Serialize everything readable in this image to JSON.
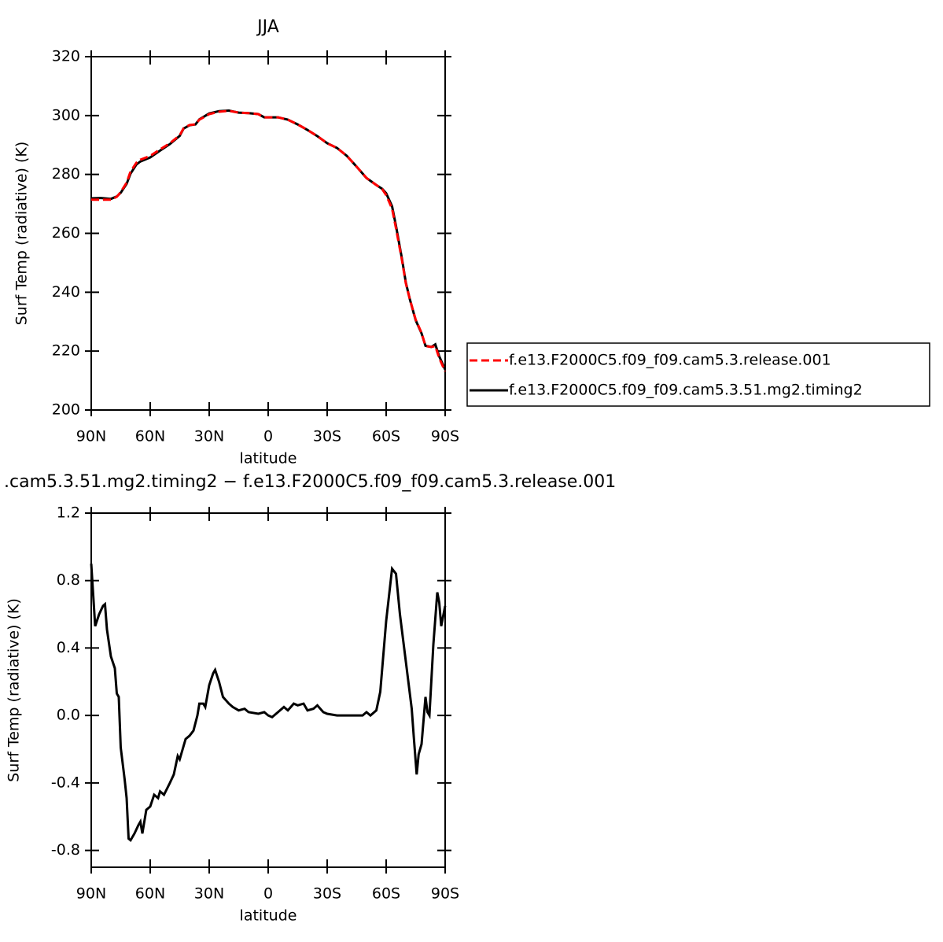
{
  "chart_data": [
    {
      "type": "line",
      "title": "JJA",
      "x_label": "latitude",
      "y_label": "Surf Temp (radiative) (K)",
      "x": [
        90,
        85,
        80,
        77,
        75,
        72,
        70,
        67,
        65,
        60,
        55,
        50,
        45,
        43,
        40,
        37,
        35,
        30,
        25,
        20,
        15,
        10,
        5,
        2,
        0,
        -5,
        -10,
        -15,
        -20,
        -25,
        -30,
        -35,
        -40,
        -45,
        -50,
        -55,
        -58,
        -60,
        -63,
        -65,
        -68,
        -70,
        -72,
        -75,
        -78,
        -80,
        -83,
        -85,
        -87,
        -90
      ],
      "series": [
        {
          "name": "f.e13.F2000C5.f09_f09.cam5.3.release.001",
          "color": "#ff0000",
          "linestyle": "dashed",
          "values": [
            271.4,
            271.4,
            271.4,
            272.4,
            274,
            277.2,
            281,
            284,
            285,
            286.3,
            288.5,
            290.6,
            293.3,
            295.7,
            296.8,
            297,
            298.6,
            300.5,
            301.3,
            301.6,
            301,
            300.8,
            300.5,
            299.4,
            299.4,
            299.4,
            298.6,
            297,
            295.1,
            293,
            290.6,
            289,
            286.3,
            282.6,
            278.8,
            276.4,
            275,
            273,
            268.4,
            261.7,
            251,
            243,
            237.7,
            230.7,
            226.2,
            221.7,
            221.4,
            221.7,
            217.6,
            213.1
          ]
        },
        {
          "name": "f.e13.F2000C5.f09_f09.cam5.3.51.mg2.timing2",
          "color": "#000000",
          "linestyle": "solid",
          "values": [
            271.9,
            272,
            271.7,
            272.5,
            273.8,
            276.8,
            280.3,
            283.4,
            284.4,
            285.8,
            288.1,
            290.3,
            293.1,
            295.6,
            296.7,
            297,
            298.7,
            300.7,
            301.5,
            301.7,
            301,
            300.8,
            300.5,
            299.4,
            299.4,
            299.4,
            298.6,
            297,
            295.1,
            293,
            290.6,
            289,
            286.3,
            282.6,
            278.8,
            276.4,
            275.1,
            273.6,
            269.2,
            262.5,
            251.5,
            243.3,
            237.7,
            230.5,
            226,
            221.8,
            221.4,
            222.3,
            218.2,
            213.7
          ]
        }
      ],
      "xlim": [
        90,
        -90
      ],
      "ylim": [
        200,
        320
      ],
      "xticks": [
        {
          "value": 90,
          "label": "90N"
        },
        {
          "value": 60,
          "label": "60N"
        },
        {
          "value": 30,
          "label": "30N"
        },
        0,
        {
          "value": -30,
          "label": "30S"
        },
        {
          "value": -60,
          "label": "60S"
        },
        {
          "value": -90,
          "label": "90S"
        }
      ],
      "yticks": [
        200,
        220,
        240,
        260,
        280,
        300,
        320
      ],
      "legend": "right"
    },
    {
      "type": "line",
      "title": ".cam5.3.51.mg2.timing2 − f.e13.F2000C5.f09_f09.cam5.3.release.001",
      "x_label": "latitude",
      "y_label": "Surf Temp (radiative) (K)",
      "x": [
        90,
        88,
        86,
        84,
        83,
        82,
        80,
        78,
        77,
        76,
        75,
        73,
        72,
        71,
        70,
        68,
        66,
        65,
        64,
        63,
        62,
        60,
        58,
        56,
        55,
        53,
        50,
        48,
        46,
        45,
        42,
        40,
        38,
        36,
        35,
        33,
        32,
        30,
        28,
        27,
        25,
        23,
        20,
        18,
        15,
        12,
        10,
        5,
        2,
        0,
        -2,
        -5,
        -8,
        -10,
        -13,
        -15,
        -18,
        -20,
        -23,
        -25,
        -28,
        -30,
        -35,
        -40,
        -45,
        -48,
        -50,
        -52,
        -55,
        -57,
        -60,
        -63,
        -65,
        -67,
        -70,
        -73,
        -74,
        -75.5,
        -76.5,
        -78,
        -80,
        -81,
        -82,
        -84,
        -86,
        -87,
        -88,
        -90
      ],
      "color": "#000000",
      "values": [
        0.9,
        0.53,
        0.6,
        0.65,
        0.66,
        0.51,
        0.35,
        0.28,
        0.13,
        0.11,
        -0.19,
        -0.38,
        -0.49,
        -0.73,
        -0.74,
        -0.7,
        -0.65,
        -0.63,
        -0.7,
        -0.63,
        -0.56,
        -0.54,
        -0.47,
        -0.49,
        -0.45,
        -0.47,
        -0.4,
        -0.35,
        -0.24,
        -0.26,
        -0.14,
        -0.12,
        -0.09,
        0,
        0.07,
        0.07,
        0.05,
        0.18,
        0.25,
        0.27,
        0.2,
        0.11,
        0.07,
        0.05,
        0.03,
        0.04,
        0.02,
        0.01,
        0.02,
        0,
        -0.01,
        0.02,
        0.05,
        0.03,
        0.07,
        0.06,
        0.07,
        0.03,
        0.04,
        0.06,
        0.02,
        0.01,
        0,
        0,
        0,
        0,
        0.02,
        0,
        0.03,
        0.14,
        0.56,
        0.87,
        0.84,
        0.6,
        0.32,
        0.04,
        -0.12,
        -0.35,
        -0.23,
        -0.17,
        0.11,
        0.02,
        0,
        0.42,
        0.73,
        0.67,
        0.53,
        0.65
      ],
      "xlim": [
        90,
        -90
      ],
      "ylim": [
        -0.9,
        1.2
      ],
      "xticks": [
        {
          "value": 90,
          "label": "90N"
        },
        {
          "value": 60,
          "label": "60N"
        },
        {
          "value": 30,
          "label": "30N"
        },
        0,
        {
          "value": -30,
          "label": "30S"
        },
        {
          "value": -60,
          "label": "60S"
        },
        {
          "value": -90,
          "label": "90S"
        }
      ],
      "yticks": [
        -0.8,
        -0.4,
        {
          "value": 0,
          "label": "0.0"
        },
        0.4,
        0.8,
        1.2
      ]
    }
  ]
}
